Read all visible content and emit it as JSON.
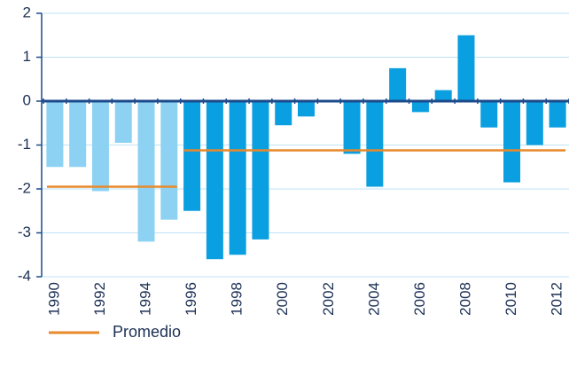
{
  "chart_data": {
    "type": "bar",
    "categories": [
      "1990",
      null,
      "1992",
      null,
      "1994",
      null,
      "1996",
      null,
      "1998",
      null,
      "2000",
      null,
      "2002",
      null,
      "2004",
      null,
      "2006",
      null,
      "2008",
      null,
      "2010",
      null,
      "2012"
    ],
    "values": [
      -1.5,
      -1.5,
      -2.05,
      -0.95,
      -3.2,
      -2.7,
      -2.5,
      -3.6,
      -3.5,
      -3.15,
      -0.55,
      -0.35,
      0,
      -1.2,
      -1.95,
      0.75,
      -0.25,
      0.25,
      1.5,
      -0.6,
      -1.85,
      -1.0,
      -0.6
    ],
    "colors": [
      "#8dd2f2",
      "#8dd2f2",
      "#8dd2f2",
      "#8dd2f2",
      "#8dd2f2",
      "#8dd2f2",
      "#0a9fe0",
      "#0a9fe0",
      "#0a9fe0",
      "#0a9fe0",
      "#0a9fe0",
      "#0a9fe0",
      "#0a9fe0",
      "#0a9fe0",
      "#0a9fe0",
      "#0a9fe0",
      "#0a9fe0",
      "#0a9fe0",
      "#0a9fe0",
      "#0a9fe0",
      "#0a9fe0",
      "#0a9fe0",
      "#0a9fe0"
    ],
    "ylim": [
      -4,
      2
    ],
    "yticks": [
      -4,
      -3,
      -2,
      -1,
      0,
      1,
      2
    ],
    "grid": true,
    "reference_lines": [
      {
        "value": -1.95,
        "start": 0,
        "end": 5
      },
      {
        "value": -1.12,
        "start": 6,
        "end": 22
      }
    ],
    "legend": {
      "name": "Promedio",
      "color": "#e8892b"
    }
  }
}
